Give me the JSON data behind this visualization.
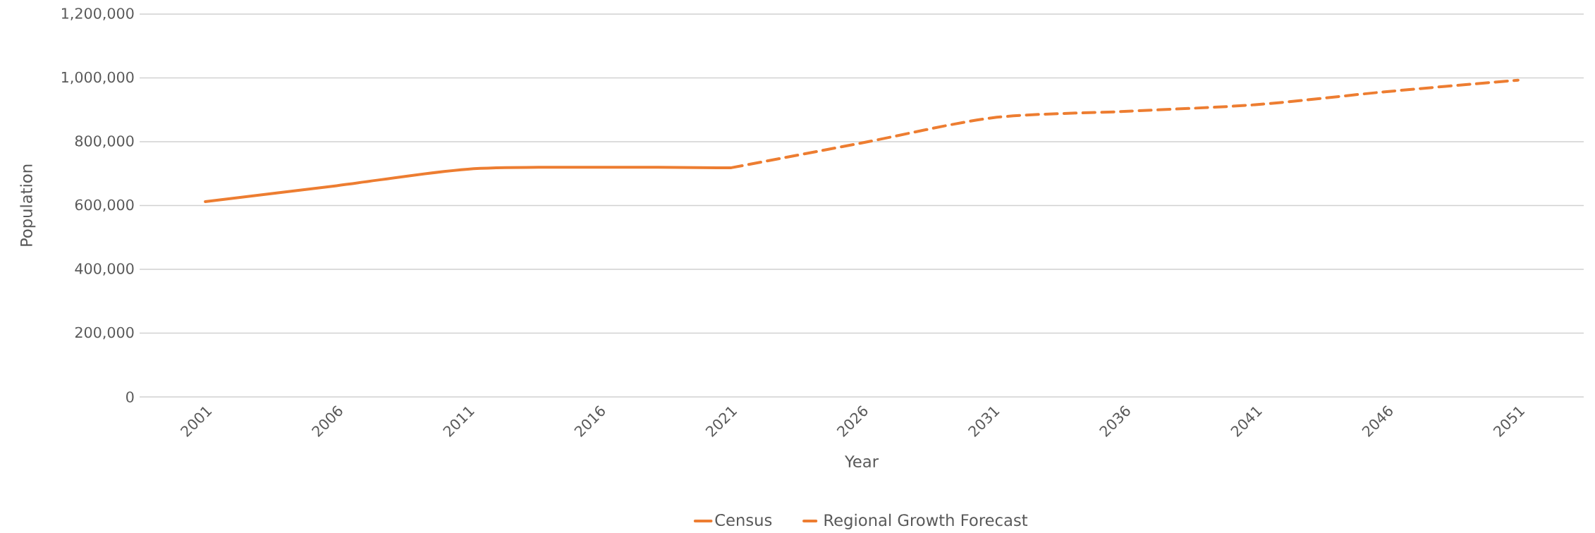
{
  "chart_data": {
    "type": "line",
    "xlabel": "Year",
    "ylabel": "Population",
    "xlim": [
      1998.5,
      2053.5
    ],
    "xticks": [
      2001,
      2006,
      2011,
      2016,
      2021,
      2026,
      2031,
      2036,
      2041,
      2046,
      2051
    ],
    "ylim": [
      0,
      1200000
    ],
    "yticks": [
      {
        "value": 0,
        "label": "0"
      },
      {
        "value": 200000,
        "label": "200,000"
      },
      {
        "value": 400000,
        "label": "400,000"
      },
      {
        "value": 600000,
        "label": "600,000"
      },
      {
        "value": 800000,
        "label": "800,000"
      },
      {
        "value": 1000000,
        "label": "1,000,000"
      },
      {
        "value": 1200000,
        "label": "1,200,000"
      }
    ],
    "grid": "y",
    "legend": "bottom",
    "series": [
      {
        "name": "Census",
        "color": "#ed7d31",
        "line_style": "solid",
        "x": [
          2001,
          2006,
          2011,
          2016,
          2021
        ],
        "values": [
          612000,
          662000,
          714000,
          720000,
          718000
        ]
      },
      {
        "name": "Regional Growth Forecast",
        "color": "#ed7d31",
        "line_style": "dashed",
        "x": [
          2021,
          2026,
          2031,
          2036,
          2041,
          2046,
          2051
        ],
        "values": [
          718000,
          796000,
          875000,
          895000,
          916000,
          957000,
          993000
        ]
      }
    ]
  }
}
